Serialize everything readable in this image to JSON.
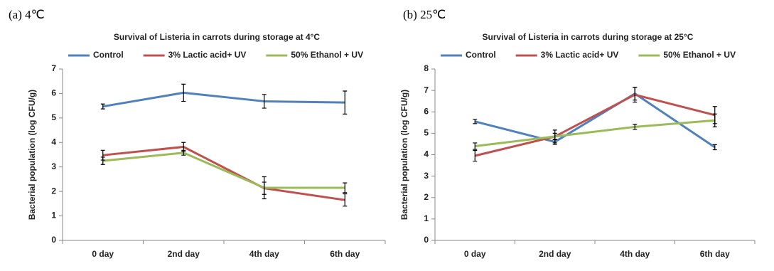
{
  "chart_data": [
    {
      "type": "line",
      "panel_label": "(a) 4℃",
      "title": "Survival of Listeria in carrots during storage at 4°C",
      "y_label": "Bacterial population (log CFU/g)",
      "categories": [
        "0 day",
        "2nd day",
        "4th day",
        "6th day"
      ],
      "ylim": [
        0,
        7
      ],
      "yticks": [
        0,
        1,
        2,
        3,
        4,
        5,
        6,
        7
      ],
      "series": [
        {
          "name": "Control",
          "color": "#4f81bd",
          "values": [
            5.47,
            6.03,
            5.68,
            5.63
          ],
          "errors": [
            0.1,
            0.35,
            0.28,
            0.47
          ]
        },
        {
          "name": "3% Lactic acid+ UV",
          "color": "#c0504d",
          "values": [
            3.48,
            3.82,
            2.13,
            1.65
          ],
          "errors": [
            0.2,
            0.18,
            0.25,
            0.25
          ]
        },
        {
          "name": "50% Ethanol + UV",
          "color": "#9bbb59",
          "values": [
            3.25,
            3.58,
            2.15,
            2.15
          ],
          "errors": [
            0.15,
            0.1,
            0.45,
            0.2
          ]
        }
      ]
    },
    {
      "type": "line",
      "panel_label": "(b) 25℃",
      "title": "Survival of Listeria in carrots during storage at 25°C",
      "y_label": "Bacterial population (log CFU/g)",
      "categories": [
        "0 day",
        "2nd day",
        "4th day",
        "6th day"
      ],
      "ylim": [
        0,
        8
      ],
      "yticks": [
        0,
        1,
        2,
        3,
        4,
        5,
        6,
        7,
        8
      ],
      "series": [
        {
          "name": "Control",
          "color": "#4f81bd",
          "values": [
            5.55,
            4.6,
            6.85,
            4.35
          ],
          "errors": [
            0.1,
            0.12,
            0.3,
            0.12
          ]
        },
        {
          "name": "3% Lactic acid+ UV",
          "color": "#c0504d",
          "values": [
            3.95,
            4.85,
            6.8,
            5.85
          ],
          "errors": [
            0.25,
            0.3,
            0.35,
            0.4
          ]
        },
        {
          "name": "50% Ethanol + UV",
          "color": "#9bbb59",
          "values": [
            4.4,
            4.85,
            5.3,
            5.6
          ],
          "errors": [
            0.15,
            0.15,
            0.12,
            0.3
          ]
        }
      ]
    }
  ]
}
